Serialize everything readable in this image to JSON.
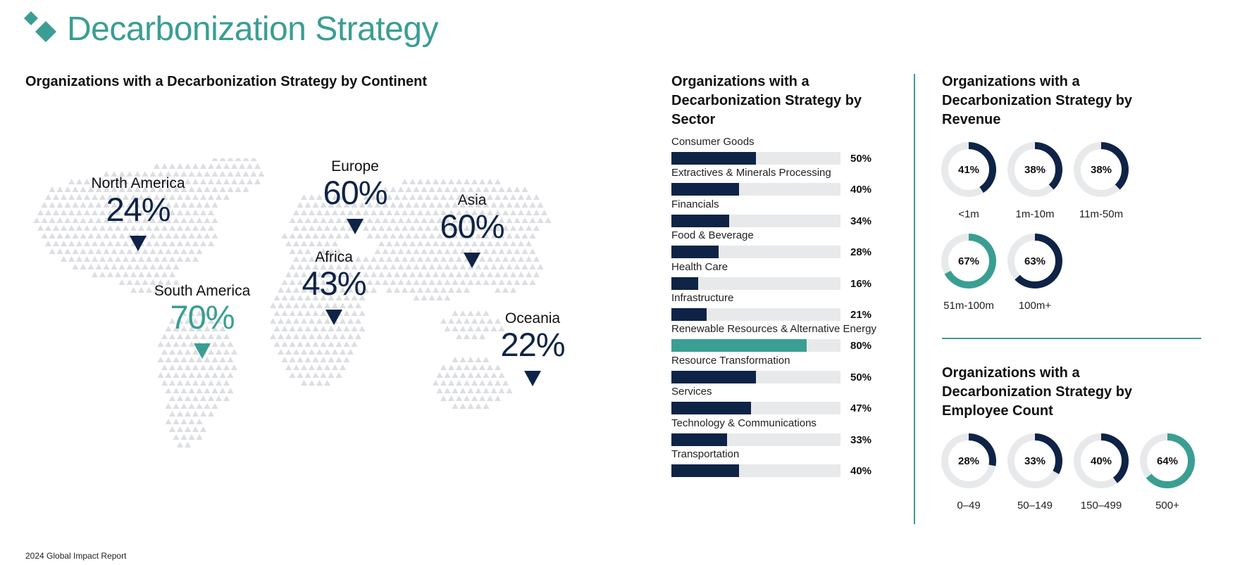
{
  "header": {
    "title": "Decarbonization Strategy",
    "logo": "teal-diamonds-logo"
  },
  "footer": {
    "text": "2024 Global Impact Report"
  },
  "colors": {
    "teal": "#3a9e93",
    "navy": "#0e2345",
    "track": "#e8e9eb",
    "map_dots": "#dcdee2"
  },
  "chart_data": [
    {
      "type": "map",
      "title": "Organizations with a Decarbonization Strategy by Continent",
      "regions": [
        {
          "name": "North America",
          "value": 24,
          "label": "24%",
          "highlight": false
        },
        {
          "name": "South America",
          "value": 70,
          "label": "70%",
          "highlight": true
        },
        {
          "name": "Europe",
          "value": 60,
          "label": "60%",
          "highlight": false
        },
        {
          "name": "Africa",
          "value": 43,
          "label": "43%",
          "highlight": false
        },
        {
          "name": "Asia",
          "value": 60,
          "label": "60%",
          "highlight": false
        },
        {
          "name": "Oceania",
          "value": 22,
          "label": "22%",
          "highlight": false
        }
      ]
    },
    {
      "type": "bar",
      "orientation": "horizontal",
      "title": "Organizations with a Decarbonization Strategy by Sector",
      "xlim": [
        0,
        100
      ],
      "categories": [
        "Consumer Goods",
        "Extractives & Minerals Processing",
        "Financials",
        "Food & Beverage",
        "Health Care",
        "Infrastructure",
        "Renewable Resources & Alternative Energy",
        "Resource Transformation",
        "Services",
        "Technology & Communications",
        "Transportation"
      ],
      "values": [
        50,
        40,
        34,
        28,
        16,
        21,
        80,
        50,
        47,
        33,
        40
      ],
      "labels": [
        "50%",
        "40%",
        "34%",
        "28%",
        "16%",
        "21%",
        "80%",
        "50%",
        "47%",
        "33%",
        "40%"
      ],
      "highlight": [
        false,
        false,
        false,
        false,
        false,
        false,
        true,
        false,
        false,
        false,
        false
      ]
    },
    {
      "type": "pie",
      "style": "donut",
      "title": "Organizations with a Decarbonization Strategy by Revenue",
      "categories": [
        "<1m",
        "1m-10m",
        "11m-50m",
        "51m-100m",
        "100m+"
      ],
      "values": [
        41,
        38,
        38,
        67,
        63
      ],
      "labels": [
        "41%",
        "38%",
        "38%",
        "67%",
        "63%"
      ],
      "highlight": [
        false,
        false,
        false,
        true,
        false
      ]
    },
    {
      "type": "pie",
      "style": "donut",
      "title": "Organizations with a Decarbonization Strategy by Employee Count",
      "categories": [
        "0–49",
        "50–149",
        "150–499",
        "500+"
      ],
      "values": [
        28,
        33,
        40,
        64
      ],
      "labels": [
        "28%",
        "33%",
        "40%",
        "64%"
      ],
      "highlight": [
        false,
        false,
        false,
        true
      ]
    }
  ]
}
